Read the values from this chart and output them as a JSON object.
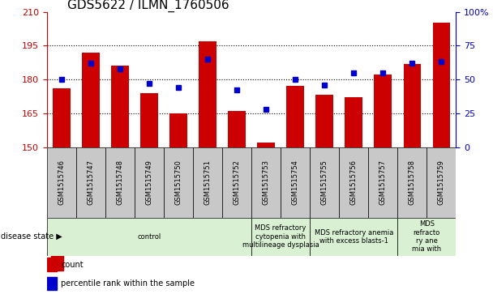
{
  "title": "GDS5622 / ILMN_1760506",
  "samples": [
    "GSM1515746",
    "GSM1515747",
    "GSM1515748",
    "GSM1515749",
    "GSM1515750",
    "GSM1515751",
    "GSM1515752",
    "GSM1515753",
    "GSM1515754",
    "GSM1515755",
    "GSM1515756",
    "GSM1515757",
    "GSM1515758",
    "GSM1515759"
  ],
  "counts": [
    176,
    192,
    186,
    174,
    165,
    197,
    166,
    152,
    177,
    173,
    172,
    182,
    187,
    205
  ],
  "percentile_ranks": [
    50,
    62,
    58,
    47,
    44,
    65,
    42,
    28,
    50,
    46,
    55,
    55,
    62,
    63
  ],
  "ylim_left": [
    150,
    210
  ],
  "ylim_right": [
    0,
    100
  ],
  "yticks_left": [
    150,
    165,
    180,
    195,
    210
  ],
  "yticks_right": [
    0,
    25,
    50,
    75,
    100
  ],
  "bar_color": "#cc0000",
  "dot_color": "#0000cc",
  "bar_bottom": 150,
  "disease_groups": [
    {
      "label": "control",
      "start": 0,
      "end": 7,
      "color": "#d9f0d3"
    },
    {
      "label": "MDS refractory\ncytopenia with\nmultilineage dysplasia",
      "start": 7,
      "end": 9,
      "color": "#d9f0d3"
    },
    {
      "label": "MDS refractory anemia\nwith excess blasts-1",
      "start": 9,
      "end": 12,
      "color": "#d9f0d3"
    },
    {
      "label": "MDS\nrefracto\nry ane\nmia with",
      "start": 12,
      "end": 14,
      "color": "#d9f0d3"
    }
  ],
  "legend_items": [
    {
      "label": "count",
      "color": "#cc0000"
    },
    {
      "label": "percentile rank within the sample",
      "color": "#0000cc"
    }
  ],
  "plot_bgcolor": "#ffffff",
  "label_bgcolor": "#c8c8c8",
  "title_fontsize": 11,
  "tick_fontsize": 8,
  "label_fontsize": 6,
  "disease_fontsize": 6,
  "legend_fontsize": 7
}
